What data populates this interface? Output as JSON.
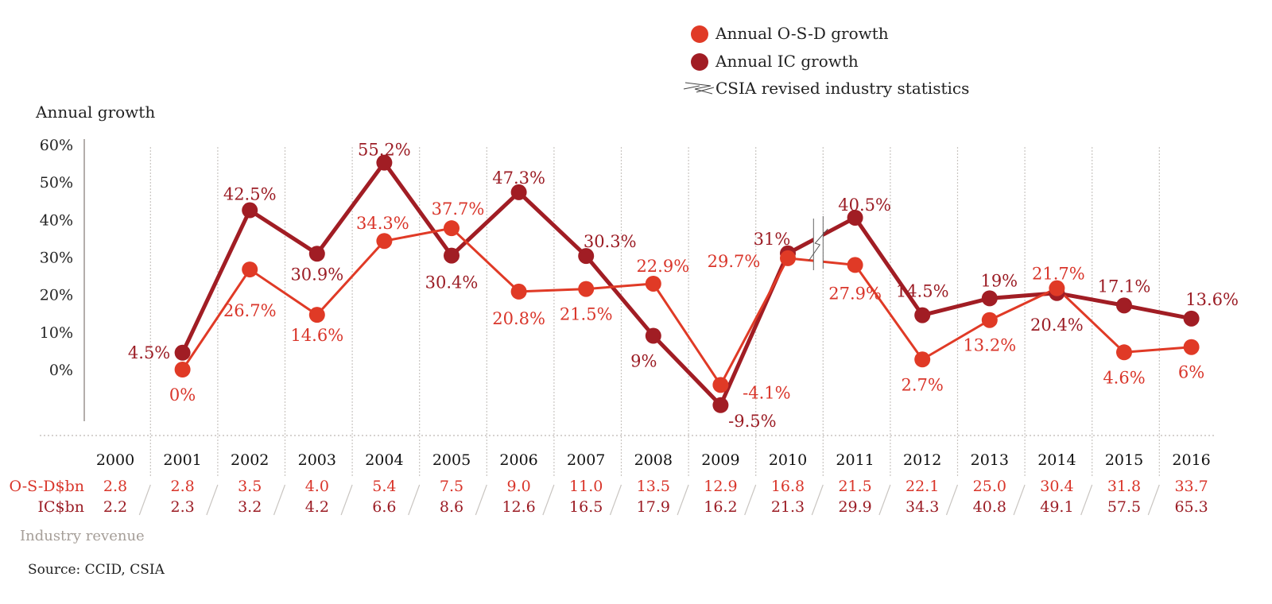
{
  "chart_data": {
    "type": "line",
    "title": "",
    "ylabel": "Annual growth",
    "xlabel": "",
    "ylim": [
      -10,
      60
    ],
    "yticks": [
      "60%",
      "50%",
      "40%",
      "30%",
      "20%",
      "10%",
      "0%"
    ],
    "ytick_values": [
      60,
      50,
      40,
      30,
      20,
      10,
      0
    ],
    "categories": [
      "2000",
      "2001",
      "2002",
      "2003",
      "2004",
      "2005",
      "2006",
      "2007",
      "2008",
      "2009",
      "2010",
      "2011",
      "2012",
      "2013",
      "2014",
      "2015",
      "2016"
    ],
    "series": [
      {
        "name": "Annual O-S-D growth",
        "color": "#e03a26",
        "values": [
          null,
          0,
          26.7,
          14.6,
          34.3,
          37.7,
          20.8,
          21.5,
          22.9,
          -4.1,
          29.7,
          27.9,
          2.7,
          13.2,
          21.7,
          4.6,
          6
        ],
        "labels": [
          null,
          "0%",
          "26.7%",
          "14.6%",
          "34.3%",
          "37.7%",
          "20.8%",
          "21.5%",
          "22.9%",
          "-4.1%",
          "29.7%",
          "27.9%",
          "2.7%",
          "13.2%",
          "21.7%",
          "4.6%",
          "6%"
        ]
      },
      {
        "name": "Annual IC growth",
        "color": "#a11d24",
        "values": [
          null,
          4.5,
          42.5,
          30.9,
          55.2,
          30.4,
          47.3,
          30.3,
          9,
          -9.5,
          31,
          40.5,
          14.5,
          19,
          20.4,
          17.1,
          13.6
        ],
        "labels": [
          null,
          "4.5%",
          "42.5%",
          "30.9%",
          "55.2%",
          "30.4%",
          "47.3%",
          "30.3%",
          "9%",
          "-9.5%",
          "31%",
          "40.5%",
          "14.5%",
          "19%",
          "20.4%",
          "17.1%",
          "13.6%"
        ]
      }
    ],
    "break_marker": {
      "between": [
        "2010",
        "2011"
      ],
      "legend": "CSIA revised industry statistics"
    },
    "legend": {
      "placement": "top-right",
      "entries": [
        "Annual O-S-D growth",
        "Annual IC growth",
        "CSIA revised industry statistics"
      ]
    },
    "grid": "vertical dotted",
    "revenue_table": {
      "title": "Industry revenue",
      "rows": [
        {
          "label": "O-S-D$bn",
          "values": [
            "2.8",
            "2.8",
            "3.5",
            "4.0",
            "5.4",
            "7.5",
            "9.0",
            "11.0",
            "13.5",
            "12.9",
            "16.8",
            "21.5",
            "22.1",
            "25.0",
            "30.4",
            "31.8",
            "33.7"
          ]
        },
        {
          "label": "IC$bn",
          "values": [
            "2.2",
            "2.3",
            "3.2",
            "4.2",
            "6.6",
            "8.6",
            "12.6",
            "16.5",
            "17.9",
            "16.2",
            "21.3",
            "29.9",
            "34.3",
            "40.8",
            "49.1",
            "57.5",
            "65.3"
          ]
        }
      ]
    },
    "source": "Source: CCID, CSIA"
  }
}
